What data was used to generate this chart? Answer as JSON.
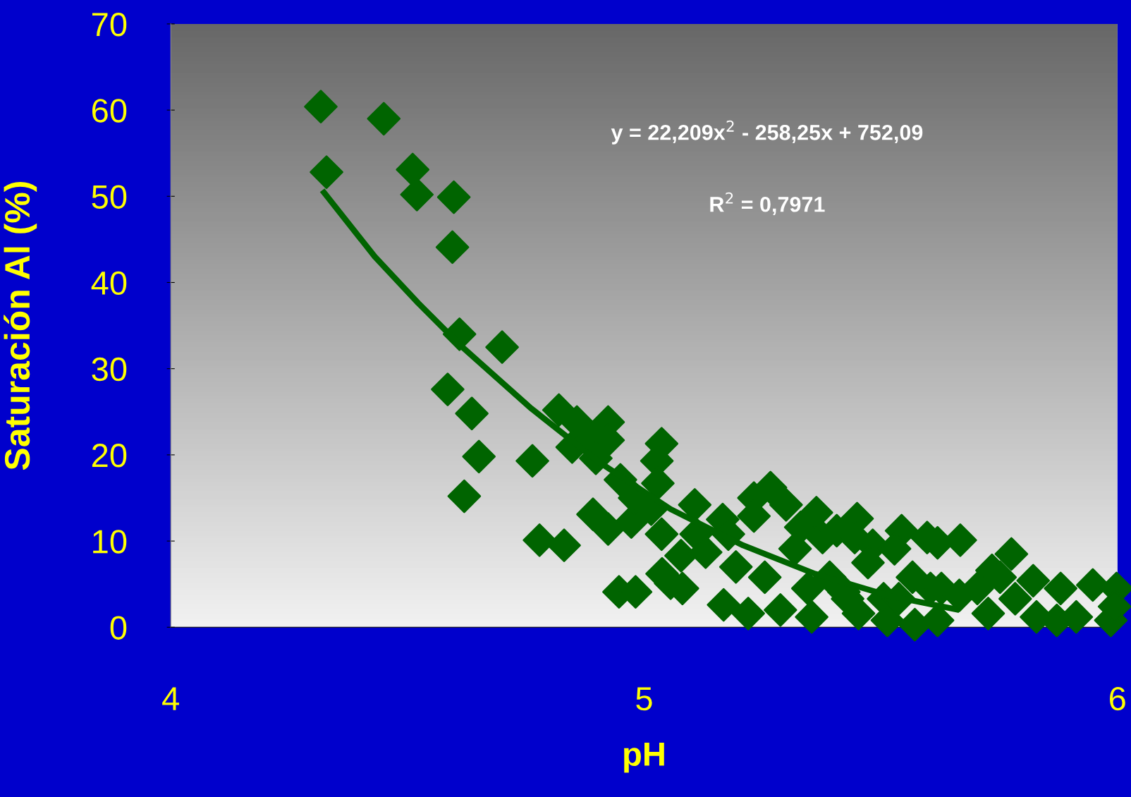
{
  "chart_data": {
    "type": "scatter",
    "xlabel": "pH",
    "ylabel": "Saturación Al (%)",
    "annotations": [
      "y = 22,209x$^{2}$ - 258,25x + 752,09",
      "R$^{2}$ = 0,7971"
    ],
    "xlim": [
      4,
      6
    ],
    "xticks": [
      4,
      5,
      6
    ],
    "ylim": [
      0,
      70
    ],
    "yticks": [
      0,
      10,
      20,
      30,
      40,
      50,
      60,
      70
    ],
    "grid": false,
    "legend": false,
    "marker": "diamond",
    "series": [
      {
        "color": "#006400",
        "x": [
          4.317,
          4.329,
          4.45,
          4.511,
          4.52,
          4.598,
          4.595,
          4.61,
          4.7,
          4.585,
          4.636,
          4.651,
          4.62,
          4.764,
          4.779,
          4.831,
          4.82,
          4.858,
          4.848,
          4.889,
          4.924,
          4.924,
          4.898,
          4.892,
          4.924,
          4.95,
          4.973,
          4.98,
          4.947,
          4.982,
          5.037,
          5.027,
          5.029,
          5.037,
          5.015,
          5.038,
          5.056,
          5.081,
          5.078,
          5.107,
          5.11,
          5.13,
          5.166,
          5.178,
          5.168,
          5.194,
          5.22,
          5.232,
          5.232,
          5.267,
          5.3,
          5.255,
          5.288,
          5.319,
          5.331,
          5.364,
          5.377,
          5.407,
          5.45,
          5.445,
          5.483,
          5.354,
          5.346,
          5.392,
          5.422,
          5.453,
          5.473,
          5.506,
          5.544,
          5.529,
          5.567,
          5.572,
          5.598,
          5.62,
          5.668,
          5.605,
          5.628,
          5.666,
          5.62,
          5.704,
          5.735,
          5.727,
          5.752,
          5.776,
          5.784,
          5.822,
          5.829,
          5.88,
          5.872,
          5.913,
          5.948,
          5.986,
          5.998,
          5.994,
          5.514,
          5.43,
          5.538
        ],
        "values": [
          60.4,
          52.8,
          59.0,
          53.1,
          50.2,
          49.9,
          44.1,
          34.0,
          32.5,
          27.6,
          24.8,
          19.8,
          15.2,
          19.3,
          10.1,
          9.5,
          25.2,
          23.8,
          20.9,
          22.1,
          23.8,
          21.7,
          19.6,
          13.1,
          11.4,
          17.1,
          12.2,
          15.0,
          4.1,
          4.1,
          21.3,
          19.3,
          16.7,
          10.8,
          13.7,
          6.2,
          5.1,
          4.5,
          8.3,
          14.2,
          10.8,
          8.7,
          12.5,
          10.8,
          2.6,
          7.0,
          1.6,
          15.0,
          12.9,
          16.2,
          14.2,
          5.8,
          2.0,
          9.1,
          11.6,
          13.3,
          10.4,
          11.2,
          12.6,
          10.4,
          9.5,
          1.2,
          4.5,
          5.8,
          4.1,
          1.6,
          7.5,
          3.3,
          11.2,
          9.1,
          5.8,
          0.3,
          10.4,
          9.8,
          10.1,
          4.5,
          4.5,
          3.7,
          0.8,
          4.5,
          6.6,
          1.6,
          5.8,
          8.5,
          3.3,
          5.4,
          1.2,
          4.5,
          0.8,
          1.2,
          4.9,
          0.8,
          4.5,
          2.4,
          0.8,
          3.3,
          3.3
        ]
      },
      {
        "type": "line",
        "color": "#006400",
        "marker": "none",
        "x": [
          4.32,
          4.431,
          4.523,
          4.614,
          4.759,
          4.904,
          5.056,
          5.209,
          5.361,
          5.514,
          5.666
        ],
        "values": [
          50.7,
          43.0,
          37.6,
          32.6,
          25.5,
          19.2,
          13.7,
          9.5,
          6.2,
          3.7,
          2.0
        ]
      }
    ]
  }
}
